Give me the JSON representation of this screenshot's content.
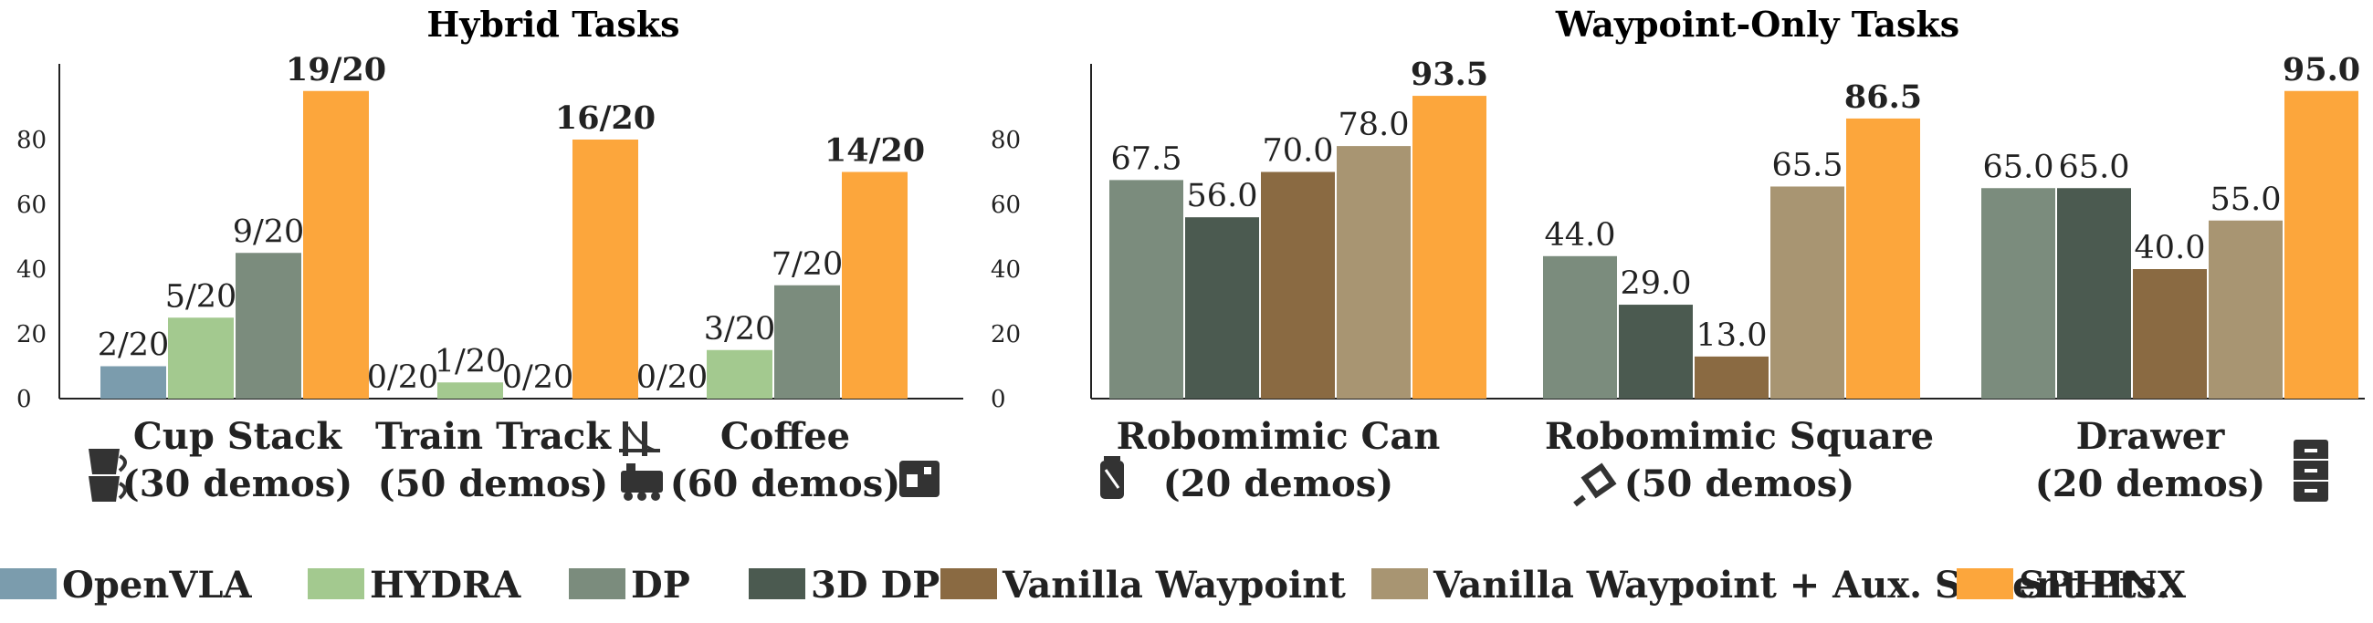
{
  "legend": [
    {
      "name": "OpenVLA",
      "color": "#7b9cad"
    },
    {
      "name": "HYDRA",
      "color": "#a3c98f"
    },
    {
      "name": "DP",
      "color": "#7b8c7d"
    },
    {
      "name": "3D DP",
      "color": "#4b5a50"
    },
    {
      "name": "Vanilla Waypoint",
      "color": "#8a6a42"
    },
    {
      "name": "Vanilla Waypoint + Aux. Salient Pts.",
      "color": "#a89572"
    },
    {
      "name": "SPHINX",
      "color": "#fca63c"
    }
  ],
  "chart_data": [
    {
      "type": "bar",
      "title": "Hybrid Tasks",
      "ylim": [
        0,
        100
      ],
      "yticks": [
        0,
        20,
        40,
        60,
        80
      ],
      "categories": [
        "Cup Stack",
        "Train Track",
        "Coffee"
      ],
      "category_sublabels": [
        "(30 demos)",
        "(50 demos)",
        "(60 demos)"
      ],
      "category_icons": [
        "cups-icon",
        "bridge-train-icon",
        "coffee-machine-icon"
      ],
      "series_order": [
        "OpenVLA",
        "HYDRA",
        "DP",
        "SPHINX"
      ],
      "groups": [
        {
          "bars": [
            {
              "series": "OpenVLA",
              "value": 10,
              "label": "2/20"
            },
            {
              "series": "HYDRA",
              "value": 25,
              "label": "5/20"
            },
            {
              "series": "DP",
              "value": 45,
              "label": "9/20"
            },
            {
              "series": "SPHINX",
              "value": 95,
              "label": "19/20",
              "bold": true
            }
          ]
        },
        {
          "bars": [
            {
              "series": "OpenVLA",
              "value": 0,
              "label": "0/20"
            },
            {
              "series": "HYDRA",
              "value": 5,
              "label": "1/20"
            },
            {
              "series": "DP",
              "value": 0,
              "label": "0/20"
            },
            {
              "series": "SPHINX",
              "value": 80,
              "label": "16/20",
              "bold": true
            }
          ]
        },
        {
          "bars": [
            {
              "series": "OpenVLA",
              "value": 0,
              "label": "0/20"
            },
            {
              "series": "HYDRA",
              "value": 15,
              "label": "3/20"
            },
            {
              "series": "DP",
              "value": 35,
              "label": "7/20"
            },
            {
              "series": "SPHINX",
              "value": 70,
              "label": "14/20",
              "bold": true
            }
          ]
        }
      ]
    },
    {
      "type": "bar",
      "title": "Waypoint-Only Tasks",
      "ylim": [
        0,
        100
      ],
      "yticks": [
        0,
        20,
        40,
        60,
        80
      ],
      "categories": [
        "Robomimic Can",
        "Robomimic Square",
        "Drawer"
      ],
      "category_sublabels": [
        "(20 demos)",
        "(50 demos)",
        "(20 demos)"
      ],
      "category_icons": [
        "can-icon",
        "square-nut-icon",
        "drawer-cabinet-icon"
      ],
      "series_order": [
        "DP",
        "3D DP",
        "Vanilla Waypoint",
        "Vanilla Waypoint + Aux. Salient Pts.",
        "SPHINX"
      ],
      "groups": [
        {
          "bars": [
            {
              "series": "DP",
              "value": 67.5,
              "label": "67.5"
            },
            {
              "series": "3D DP",
              "value": 56.0,
              "label": "56.0"
            },
            {
              "series": "Vanilla Waypoint",
              "value": 70.0,
              "label": "70.0"
            },
            {
              "series": "Vanilla Waypoint + Aux. Salient Pts.",
              "value": 78.0,
              "label": "78.0"
            },
            {
              "series": "SPHINX",
              "value": 93.5,
              "label": "93.5",
              "bold": true
            }
          ]
        },
        {
          "bars": [
            {
              "series": "DP",
              "value": 44.0,
              "label": "44.0"
            },
            {
              "series": "3D DP",
              "value": 29.0,
              "label": "29.0"
            },
            {
              "series": "Vanilla Waypoint",
              "value": 13.0,
              "label": "13.0"
            },
            {
              "series": "Vanilla Waypoint + Aux. Salient Pts.",
              "value": 65.5,
              "label": "65.5"
            },
            {
              "series": "SPHINX",
              "value": 86.5,
              "label": "86.5",
              "bold": true
            }
          ]
        },
        {
          "bars": [
            {
              "series": "DP",
              "value": 65.0,
              "label": "65.0"
            },
            {
              "series": "3D DP",
              "value": 65.0,
              "label": "65.0"
            },
            {
              "series": "Vanilla Waypoint",
              "value": 40.0,
              "label": "40.0"
            },
            {
              "series": "Vanilla Waypoint + Aux. Salient Pts.",
              "value": 55.0,
              "label": "55.0"
            },
            {
              "series": "SPHINX",
              "value": 95.0,
              "label": "95.0",
              "bold": true
            }
          ]
        }
      ]
    }
  ]
}
